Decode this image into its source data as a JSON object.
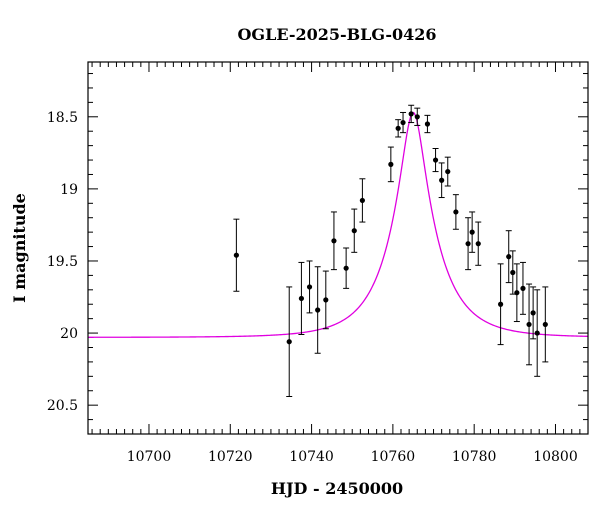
{
  "chart_data": {
    "type": "scatter",
    "title": "OGLE-2025-BLG-0426",
    "xlabel": "HJD - 2450000",
    "ylabel": "I magnitude",
    "xlim": [
      10685,
      10808
    ],
    "ylim": [
      20.7,
      18.12
    ],
    "y_inverted": true,
    "grid": false,
    "x_ticks": [
      {
        "value": 10700,
        "label": "10700"
      },
      {
        "value": 10720,
        "label": "10720"
      },
      {
        "value": 10740,
        "label": "10740"
      },
      {
        "value": 10760,
        "label": "10760"
      },
      {
        "value": 10780,
        "label": "10780"
      },
      {
        "value": 10800,
        "label": "10800"
      }
    ],
    "y_ticks": [
      {
        "value": 18.5,
        "label": "18.5"
      },
      {
        "value": 19.0,
        "label": "19"
      },
      {
        "value": 19.5,
        "label": "19.5"
      },
      {
        "value": 20.0,
        "label": "20"
      },
      {
        "value": 20.5,
        "label": "20.5"
      }
    ],
    "points": [
      {
        "x": 10721.5,
        "y": 19.46,
        "err": 0.25
      },
      {
        "x": 10734.5,
        "y": 20.06,
        "err": 0.38
      },
      {
        "x": 10737.5,
        "y": 19.76,
        "err": 0.25
      },
      {
        "x": 10739.5,
        "y": 19.68,
        "err": 0.18
      },
      {
        "x": 10741.5,
        "y": 19.84,
        "err": 0.3
      },
      {
        "x": 10743.5,
        "y": 19.77,
        "err": 0.2
      },
      {
        "x": 10745.5,
        "y": 19.36,
        "err": 0.2
      },
      {
        "x": 10748.5,
        "y": 19.55,
        "err": 0.14
      },
      {
        "x": 10750.5,
        "y": 19.29,
        "err": 0.15
      },
      {
        "x": 10752.5,
        "y": 19.08,
        "err": 0.15
      },
      {
        "x": 10759.5,
        "y": 18.83,
        "err": 0.12
      },
      {
        "x": 10761.3,
        "y": 18.58,
        "err": 0.06
      },
      {
        "x": 10762.5,
        "y": 18.54,
        "err": 0.07
      },
      {
        "x": 10764.5,
        "y": 18.48,
        "err": 0.06
      },
      {
        "x": 10766.0,
        "y": 18.5,
        "err": 0.06
      },
      {
        "x": 10768.5,
        "y": 18.55,
        "err": 0.06
      },
      {
        "x": 10770.5,
        "y": 18.8,
        "err": 0.08
      },
      {
        "x": 10772.0,
        "y": 18.94,
        "err": 0.12
      },
      {
        "x": 10773.5,
        "y": 18.88,
        "err": 0.1
      },
      {
        "x": 10775.5,
        "y": 19.16,
        "err": 0.12
      },
      {
        "x": 10778.5,
        "y": 19.38,
        "err": 0.18
      },
      {
        "x": 10779.5,
        "y": 19.3,
        "err": 0.14
      },
      {
        "x": 10781.0,
        "y": 19.38,
        "err": 0.15
      },
      {
        "x": 10786.5,
        "y": 19.8,
        "err": 0.28
      },
      {
        "x": 10788.5,
        "y": 19.47,
        "err": 0.18
      },
      {
        "x": 10789.5,
        "y": 19.58,
        "err": 0.15
      },
      {
        "x": 10790.5,
        "y": 19.72,
        "err": 0.2
      },
      {
        "x": 10792.0,
        "y": 19.69,
        "err": 0.18
      },
      {
        "x": 10793.5,
        "y": 19.94,
        "err": 0.28
      },
      {
        "x": 10794.5,
        "y": 19.86,
        "err": 0.18
      },
      {
        "x": 10795.5,
        "y": 20.0,
        "err": 0.3
      },
      {
        "x": 10797.5,
        "y": 19.94,
        "err": 0.26
      }
    ],
    "model": {
      "peak_x": 10765.0,
      "peak_mag": 18.47,
      "baseline_mag": 20.03,
      "t_E": 11.0,
      "color": "#e000e0"
    },
    "series_color": "#000000"
  }
}
